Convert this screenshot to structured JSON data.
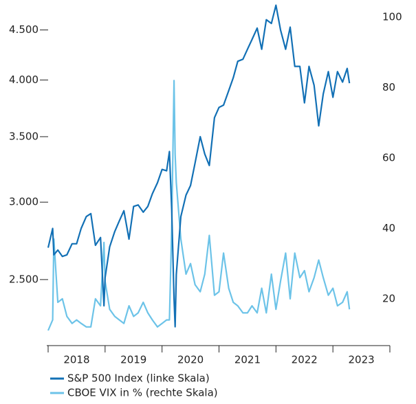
{
  "chart_data": {
    "type": "line",
    "x": [
      2018.0,
      2018.08,
      2018.1,
      2018.17,
      2018.25,
      2018.33,
      2018.42,
      2018.5,
      2018.58,
      2018.67,
      2018.75,
      2018.83,
      2018.92,
      2018.98,
      2019.0,
      2019.08,
      2019.17,
      2019.25,
      2019.33,
      2019.42,
      2019.5,
      2019.58,
      2019.67,
      2019.75,
      2019.83,
      2019.92,
      2020.0,
      2020.08,
      2020.13,
      2020.17,
      2020.21,
      2020.23,
      2020.25,
      2020.33,
      2020.42,
      2020.5,
      2020.58,
      2020.67,
      2020.75,
      2020.83,
      2020.92,
      2021.0,
      2021.08,
      2021.17,
      2021.25,
      2021.33,
      2021.42,
      2021.5,
      2021.58,
      2021.67,
      2021.75,
      2021.83,
      2021.92,
      2022.0,
      2022.08,
      2022.17,
      2022.25,
      2022.33,
      2022.42,
      2022.5,
      2022.58,
      2022.67,
      2022.75,
      2022.83,
      2022.92,
      2023.0,
      2023.08,
      2023.17,
      2023.25,
      2023.29
    ],
    "series": [
      {
        "name": "S&P 500 Index (linke Skala)",
        "color": "#1270b5",
        "axis": "y",
        "values": [
          2695,
          2820,
          2650,
          2680,
          2640,
          2650,
          2720,
          2720,
          2820,
          2900,
          2920,
          2710,
          2760,
          2350,
          2510,
          2700,
          2800,
          2870,
          2940,
          2750,
          2970,
          2980,
          2930,
          2970,
          3060,
          3140,
          3240,
          3230,
          3380,
          2950,
          2390,
          2237,
          2530,
          2900,
          3050,
          3120,
          3290,
          3500,
          3360,
          3270,
          3660,
          3750,
          3770,
          3900,
          4020,
          4180,
          4200,
          4300,
          4400,
          4520,
          4300,
          4610,
          4570,
          4770,
          4500,
          4300,
          4530,
          4130,
          4130,
          3790,
          4130,
          3950,
          3590,
          3870,
          4080,
          3840,
          4080,
          3980,
          4110,
          3970
        ]
      },
      {
        "name": "CBOE VIX in % (rechte Skala)",
        "color": "#6cc3e8",
        "axis": "y2",
        "values": [
          11,
          14,
          37,
          19,
          20,
          15,
          13,
          14,
          13,
          12,
          12,
          20,
          18,
          36,
          25,
          17,
          15,
          14,
          13,
          18,
          15,
          16,
          19,
          16,
          14,
          12,
          13,
          14,
          14,
          40,
          82,
          61,
          53,
          37,
          27,
          30,
          24,
          22,
          27,
          38,
          21,
          22,
          33,
          23,
          19,
          18,
          16,
          16,
          18,
          16,
          23,
          16,
          27,
          17,
          25,
          33,
          20,
          33,
          26,
          28,
          22,
          26,
          31,
          26,
          21,
          23,
          18,
          19,
          22,
          17
        ]
      }
    ],
    "xlim": [
      2018,
      2024
    ],
    "xticks": [
      {
        "value": 2018.5,
        "label": "2018"
      },
      {
        "value": 2019.5,
        "label": "2019"
      },
      {
        "value": 2020.5,
        "label": "2020"
      },
      {
        "value": 2021.5,
        "label": "2021"
      },
      {
        "value": 2022.5,
        "label": "2022"
      },
      {
        "value": 2023.5,
        "label": "2023"
      }
    ],
    "ylim": [
      2140,
      4790
    ],
    "log_y": true,
    "yticks": [
      {
        "value": 2500,
        "label": "2.500"
      },
      {
        "value": 3000,
        "label": "3.000"
      },
      {
        "value": 3500,
        "label": "3.500"
      },
      {
        "value": 4000,
        "label": "4.000"
      },
      {
        "value": 4500,
        "label": "4.500"
      }
    ],
    "y2lim": [
      6.7,
      103.9
    ],
    "y2ticks": [
      20,
      40,
      60,
      80,
      100
    ],
    "legend": "bottom-left"
  }
}
